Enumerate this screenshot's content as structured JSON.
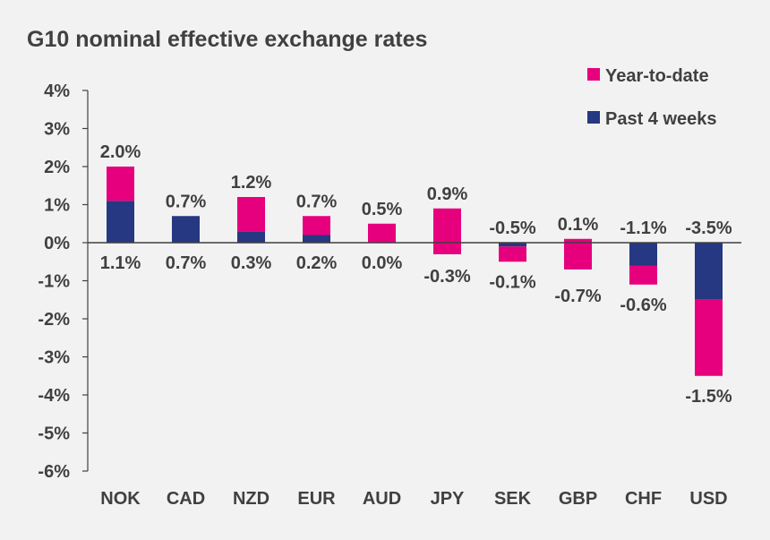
{
  "chart_data": {
    "type": "bar",
    "title": "G10 nominal effective exchange rates",
    "categories": [
      "NOK",
      "CAD",
      "NZD",
      "EUR",
      "AUD",
      "JPY",
      "SEK",
      "GBP",
      "CHF",
      "USD"
    ],
    "series": [
      {
        "name": "Year-to-date",
        "values": [
          2.0,
          0.7,
          1.2,
          0.7,
          0.5,
          0.9,
          -0.5,
          0.1,
          -1.1,
          -3.5
        ],
        "color": "#e6007e"
      },
      {
        "name": "Past 4 weeks",
        "values": [
          1.1,
          0.7,
          0.3,
          0.2,
          0.0,
          -0.3,
          -0.1,
          -0.7,
          -0.6,
          -1.5
        ],
        "color": "#253881"
      }
    ],
    "total_labels": [
      "2.0%",
      "0.7%",
      "1.2%",
      "0.7%",
      "0.5%",
      "0.9%",
      "-0.5%",
      "0.1%",
      "-1.1%",
      "-3.5%"
    ],
    "part_labels": [
      "1.1%",
      "0.7%",
      "0.3%",
      "0.2%",
      "0.0%",
      "-0.3%",
      "-0.1%",
      "-0.7%",
      "-0.6%",
      "-1.5%"
    ],
    "y_ticks": [
      "4%",
      "3%",
      "2%",
      "1%",
      "0%",
      "-1%",
      "-2%",
      "-3%",
      "-4%",
      "-5%",
      "-6%"
    ],
    "ylim": [
      -6,
      4
    ],
    "legend_position": "top-right",
    "grid": false
  }
}
